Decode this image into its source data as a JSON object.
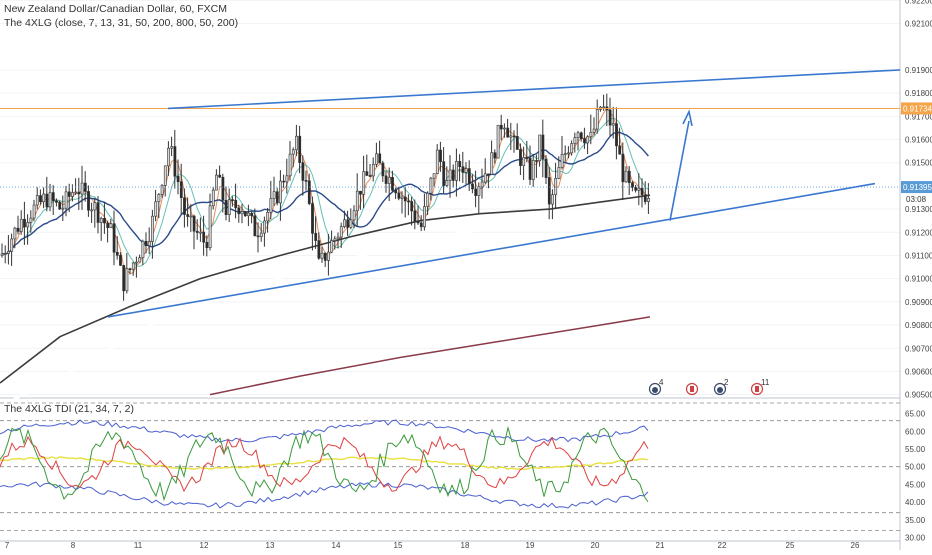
{
  "header": {
    "title": "New Zealand Dollar/Canadian Dollar, 60, FXCM",
    "indicator": "The 4XLG (close, 7, 13, 31, 50, 200, 800, 50, 200)",
    "tdi_label": "The 4XLG TDI (21, 34, 7, 2)"
  },
  "colors": {
    "background": "#ffffff",
    "trendline": "#3a78d0",
    "resistance": "#f5a44a",
    "price_label_bg": "#5b9bd5",
    "resistance_label_bg": "#f5a44a",
    "up_candle": "#2b2b2b",
    "down_candle": "#d9d9d9",
    "ma_800": "#3c3c3c",
    "ma_200_white": "#ffffff",
    "ma_maroon": "#8b3a4a",
    "tdi_band": "#4a5fd0",
    "tdi_mid": "#e8e040",
    "tdi_red": "#e04040",
    "tdi_green": "#3a9a3a"
  },
  "price_axis": {
    "ticks": [
      "0.92200",
      "0.92100",
      "0.91900",
      "0.91800",
      "0.91700",
      "0.91600",
      "0.91500",
      "0.91300",
      "0.91200",
      "0.91100",
      "0.91000",
      "0.90900",
      "0.90800",
      "0.90700",
      "0.90600",
      "0.90500"
    ],
    "current_price": "0.91395",
    "countdown": "03:08",
    "resistance_price": "0.91734"
  },
  "tdi_axis": {
    "ticks": [
      "65.00",
      "60.00",
      "55.00",
      "50.00",
      "45.00",
      "40.00",
      "35.00",
      "30.00"
    ]
  },
  "time_axis": {
    "ticks": [
      "7",
      "8",
      "11",
      "12",
      "13",
      "14",
      "15",
      "18",
      "19",
      "20",
      "21",
      "22",
      "25",
      "26"
    ]
  },
  "events": [
    {
      "icon": "news-icon",
      "badge": "4"
    },
    {
      "icon": "canada-flag-icon",
      "badge": ""
    },
    {
      "icon": "news-icon",
      "badge": "2"
    },
    {
      "icon": "canada-flag-icon",
      "badge": "11"
    }
  ],
  "chart_data": {
    "type": "candlestick",
    "symbol": "NZDCAD",
    "timeframe": "60",
    "y_range": [
      0.9048,
      0.9222
    ],
    "current_price": 0.91395,
    "resistance_level": 0.91734,
    "trendlines": [
      {
        "name": "upper-channel",
        "points": [
          [
            "11",
            0.91734
          ],
          [
            "26",
            0.919
          ]
        ]
      },
      {
        "name": "lower-channel",
        "points": [
          [
            "10",
            0.90835
          ],
          [
            "26",
            0.9141
          ]
        ]
      }
    ],
    "projection_arrow": {
      "from": [
        "20",
        0.9125
      ],
      "to": [
        "21",
        0.9172
      ]
    },
    "tdi": {
      "y_range": [
        29,
        68
      ],
      "levels": [
        68,
        63,
        50,
        37,
        32
      ]
    }
  }
}
